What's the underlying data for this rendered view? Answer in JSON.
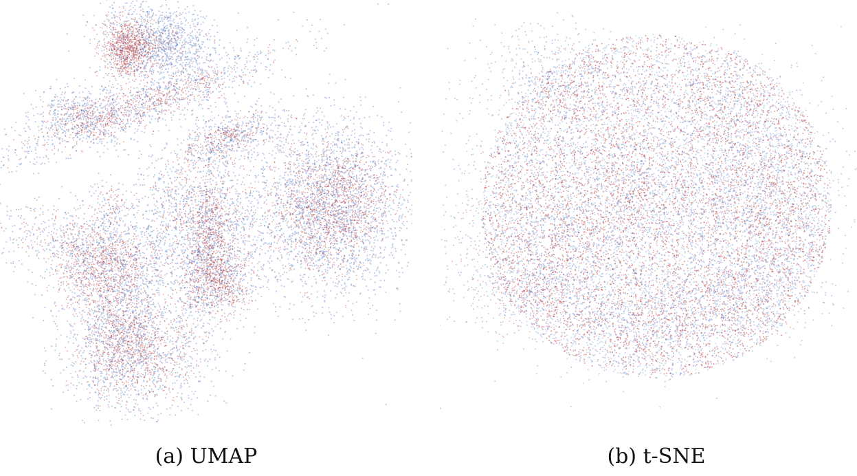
{
  "figure": {
    "panels": [
      {
        "label": "(a) UMAP"
      },
      {
        "label": "(b) t-SNE"
      }
    ]
  },
  "colors": {
    "class_a": "#4a72c0",
    "class_b": "#c03a3a",
    "background": "#ffffff"
  },
  "chart_data": [
    {
      "type": "scatter",
      "title": "(a) UMAP",
      "xlabel": "",
      "ylabel": "",
      "series": [
        {
          "name": "blue points"
        },
        {
          "name": "red points"
        }
      ],
      "grid": false,
      "axes_visible": false
    },
    {
      "type": "scatter",
      "title": "(b) t-SNE",
      "xlabel": "",
      "ylabel": "",
      "series": [
        {
          "name": "blue points"
        },
        {
          "name": "red points"
        }
      ],
      "grid": false,
      "axes_visible": false
    }
  ]
}
